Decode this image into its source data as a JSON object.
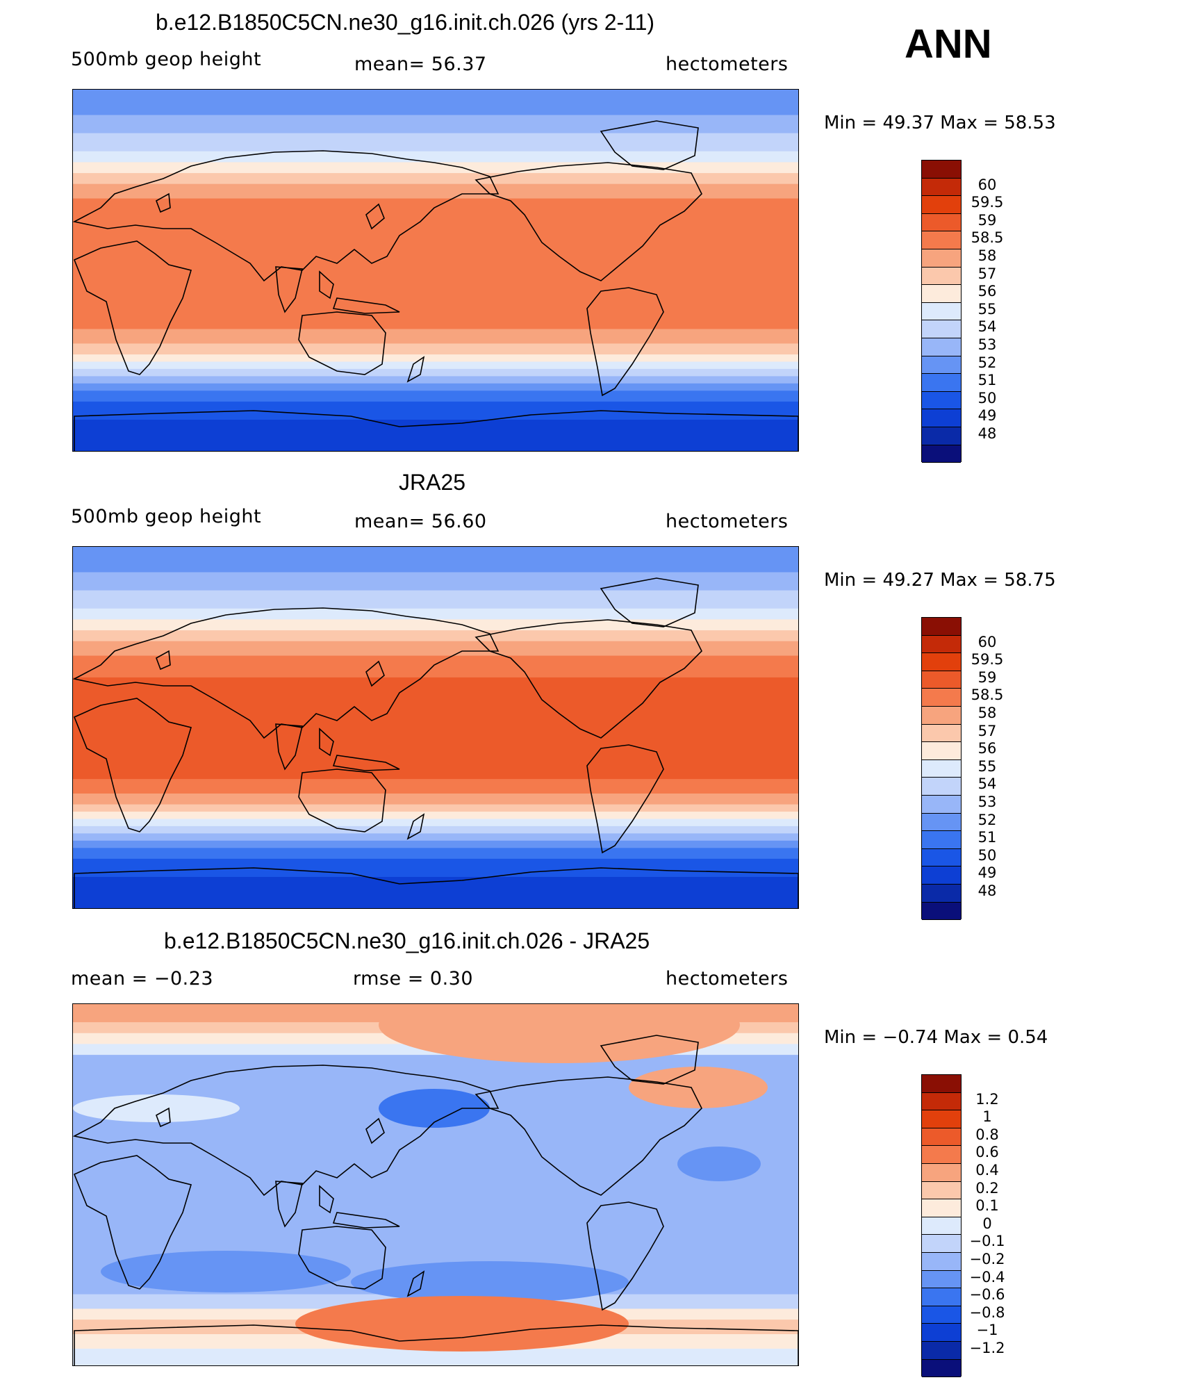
{
  "season": "ANN",
  "colors": {
    "abs": [
      "#0a0f7a",
      "#0a2aa8",
      "#0d3fd4",
      "#1a56e6",
      "#3a75f0",
      "#6694f4",
      "#98b6f8",
      "#c2d4fa",
      "#ddeafc",
      "#fdebdc",
      "#fbc8ac",
      "#f7a47e",
      "#f47a4c",
      "#ec5a2a",
      "#e2400c",
      "#c42a08",
      "#8a0f04"
    ],
    "diff": [
      "#0a0f7a",
      "#0a2aa8",
      "#0d3fd4",
      "#1a56e6",
      "#3a75f0",
      "#6694f4",
      "#98b6f8",
      "#c2d4fa",
      "#ddeafc",
      "#fdebdc",
      "#fbc8ac",
      "#f7a47e",
      "#f47a4c",
      "#ec5a2a",
      "#e2400c",
      "#c42a08",
      "#8a0f04"
    ]
  },
  "panels": [
    {
      "title": "b.e12.B1850C5CN.ne30_g16.init.ch.026 (yrs 2-11)",
      "left": "500mb  geop  height",
      "center": "mean=   56.37",
      "right": "hectometers",
      "minmax": "Min  =    49.37  Max  =    58.53",
      "colorbar_labels": [
        "60",
        "59.5",
        "59",
        "58.5",
        "58",
        "57",
        "56",
        "55",
        "54",
        "53",
        "52",
        "51",
        "50",
        "49",
        "48"
      ],
      "map_kind": "model",
      "map_label": "500mb geopotential height map, model"
    },
    {
      "title": "JRA25",
      "left": "500mb  geop  height",
      "center": "mean=   56.60",
      "right": "hectometers",
      "minmax": "Min  =    49.27  Max  =    58.75",
      "colorbar_labels": [
        "60",
        "59.5",
        "59",
        "58.5",
        "58",
        "57",
        "56",
        "55",
        "54",
        "53",
        "52",
        "51",
        "50",
        "49",
        "48"
      ],
      "map_kind": "obs",
      "map_label": "500mb geopotential height map, JRA25"
    },
    {
      "title": "b.e12.B1850C5CN.ne30_g16.init.ch.026 - JRA25",
      "left": "mean  =    −0.23",
      "center": "rmse  =     0.30",
      "right": "hectometers",
      "minmax": "Min  =   −0.74  Max  =     0.54",
      "colorbar_labels": [
        "1.2",
        "1",
        "0.8",
        "0.6",
        "0.4",
        "0.2",
        "0.1",
        "0",
        "−0.1",
        "−0.2",
        "−0.4",
        "−0.6",
        "−0.8",
        "−1",
        "−1.2"
      ],
      "map_kind": "diff",
      "map_label": "difference map model minus JRA25"
    }
  ]
}
